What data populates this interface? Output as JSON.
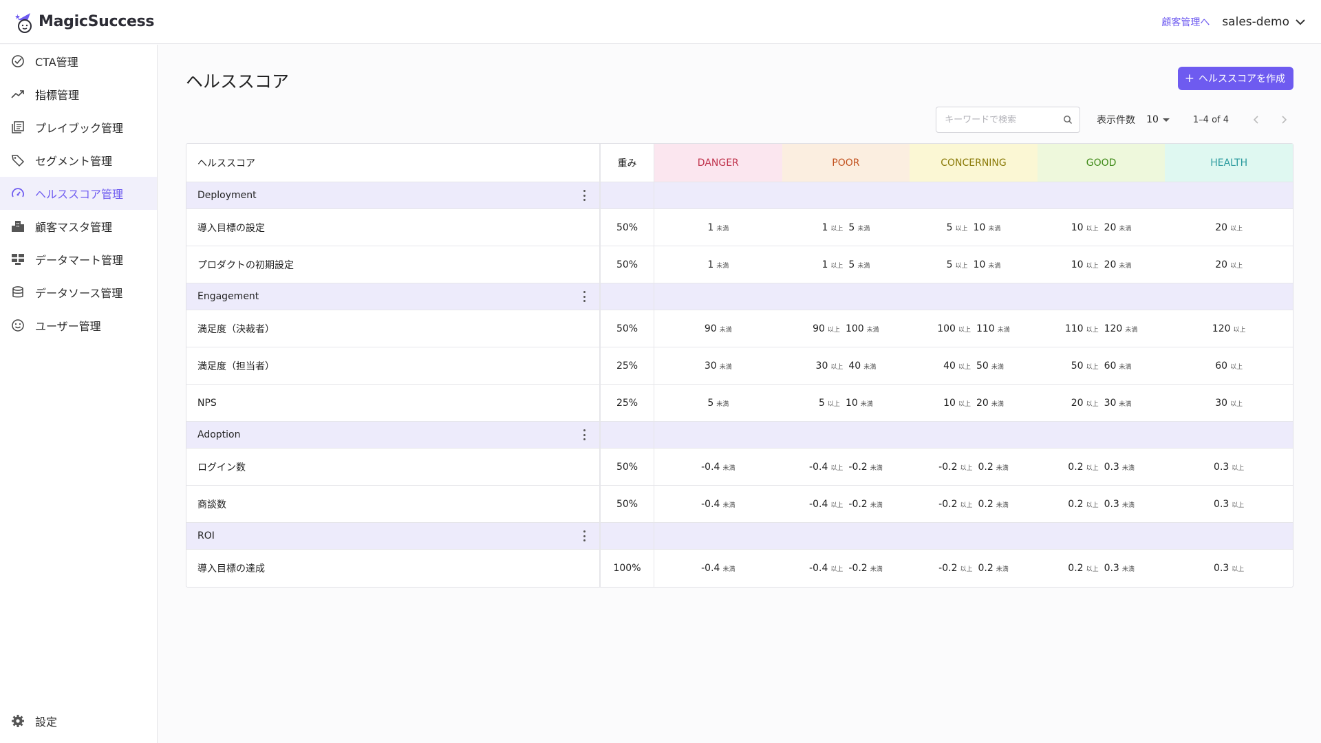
{
  "app": {
    "brand": "MagicSuccess",
    "header_link": "顧客管理へ",
    "user": "sales-demo"
  },
  "sidebar": {
    "items": [
      {
        "label": "CTA管理",
        "icon": "check-circle-icon"
      },
      {
        "label": "指標管理",
        "icon": "trending-up-icon"
      },
      {
        "label": "プレイブック管理",
        "icon": "playbook-icon"
      },
      {
        "label": "セグメント管理",
        "icon": "tag-icon"
      },
      {
        "label": "ヘルススコア管理",
        "icon": "gauge-icon",
        "active": true
      },
      {
        "label": "顧客マスタ管理",
        "icon": "building-icon"
      },
      {
        "label": "データマート管理",
        "icon": "datamart-icon"
      },
      {
        "label": "データソース管理",
        "icon": "database-icon"
      },
      {
        "label": "ユーザー管理",
        "icon": "smile-icon"
      }
    ],
    "settings_label": "設定"
  },
  "page": {
    "title": "ヘルススコア",
    "create_button": "ヘルススコアを作成",
    "create_plus": "+",
    "search_placeholder": "キーワードで検索",
    "per_page_label": "表示件数",
    "per_page_value": "10",
    "page_range": "1–4 of 4"
  },
  "table": {
    "headers": {
      "name": "ヘルススコア",
      "weight": "重み",
      "levels": [
        "DANGER",
        "POOR",
        "CONCERNING",
        "GOOD",
        "HEALTH"
      ]
    },
    "level_colors": {
      "DANGER": {
        "bg": "#fbe6ef",
        "fg": "#c0344d"
      },
      "POOR": {
        "bg": "#fbeee0",
        "fg": "#c2521f"
      },
      "CONCERNING": {
        "bg": "#fbf7d4",
        "fg": "#8a7a08"
      },
      "GOOD": {
        "bg": "#eef8dc",
        "fg": "#3f8a18"
      },
      "HEALTH": {
        "bg": "#dff8f1",
        "fg": "#2a9a9e"
      }
    },
    "suffix_lt": "未満",
    "suffix_gte": "以上",
    "groups": [
      {
        "name": "Deployment",
        "items": [
          {
            "name": "導入目標の設定",
            "weight": "50%",
            "t": [
              "1",
              "5",
              "10",
              "20"
            ]
          },
          {
            "name": "プロダクトの初期設定",
            "weight": "50%",
            "t": [
              "1",
              "5",
              "10",
              "20"
            ]
          }
        ]
      },
      {
        "name": "Engagement",
        "items": [
          {
            "name": "満足度（決裁者）",
            "weight": "50%",
            "t": [
              "90",
              "100",
              "110",
              "120"
            ]
          },
          {
            "name": "満足度（担当者）",
            "weight": "25%",
            "t": [
              "30",
              "40",
              "50",
              "60"
            ]
          },
          {
            "name": "NPS",
            "weight": "25%",
            "t": [
              "5",
              "10",
              "20",
              "30"
            ]
          }
        ]
      },
      {
        "name": "Adoption",
        "items": [
          {
            "name": "ログイン数",
            "weight": "50%",
            "t": [
              "-0.4",
              "-0.2",
              "0.2",
              "0.3"
            ]
          },
          {
            "name": "商談数",
            "weight": "50%",
            "t": [
              "-0.4",
              "-0.2",
              "0.2",
              "0.3"
            ]
          }
        ]
      },
      {
        "name": "ROI",
        "items": [
          {
            "name": "導入目標の達成",
            "weight": "100%",
            "t": [
              "-0.4",
              "-0.2",
              "0.2",
              "0.3"
            ]
          }
        ]
      }
    ]
  }
}
